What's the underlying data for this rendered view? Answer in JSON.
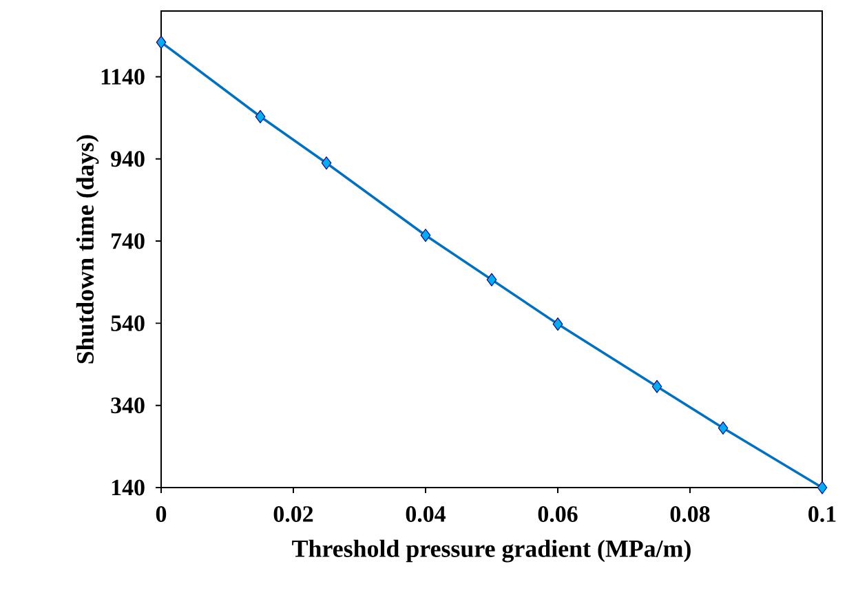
{
  "chart_data": {
    "type": "line",
    "xlabel": "Threshold pressure gradient  (MPa/m)",
    "ylabel": "Shutdown  time  (days)",
    "x": [
      0,
      0.015,
      0.025,
      0.04,
      0.05,
      0.06,
      0.075,
      0.085,
      0.1
    ],
    "series": [
      {
        "color": "#0070c0",
        "values": [
          1224,
          1043,
          930,
          754,
          646,
          538,
          386,
          285,
          140
        ]
      }
    ],
    "xlim": [
      0,
      0.1
    ],
    "xticks": [
      0,
      0.02,
      0.04,
      0.06,
      0.08,
      0.1
    ],
    "ylim": [
      140,
      1300
    ],
    "yticks": [
      140,
      340,
      540,
      740,
      940,
      1140
    ],
    "marker": "diamond",
    "line_style": "solid"
  }
}
